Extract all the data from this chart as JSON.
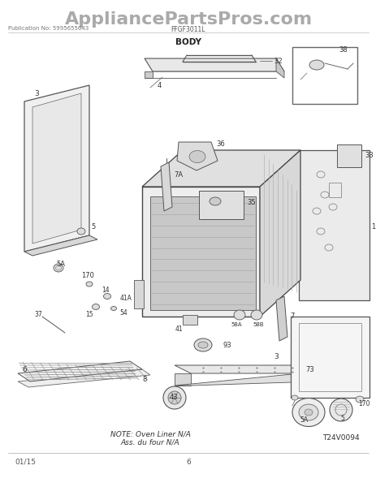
{
  "title": "AppliancePartsPros.com",
  "pub_no": "Publication No: 5995655643",
  "model": "FFGF3011L",
  "section": "BODY",
  "note_line1": "NOTE: Oven Liner N/A",
  "note_line2": "Ass. du four N/A",
  "diagram_id": "T24V0094",
  "date": "01/15",
  "page": "6",
  "bg_color": "#ffffff",
  "title_color": "#aaaaaa",
  "line_color": "#555555"
}
